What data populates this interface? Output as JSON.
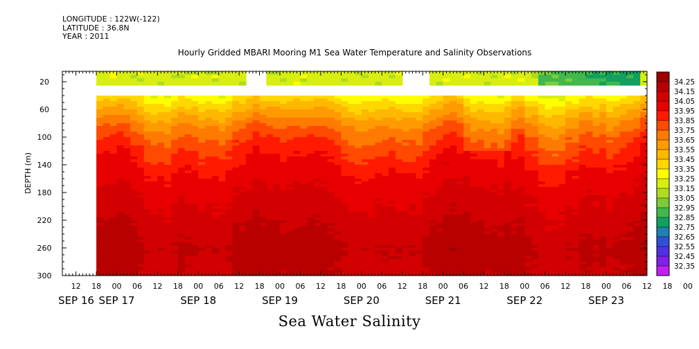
{
  "header": {
    "longitude": "LONGITUDE : 122W(-122)",
    "latitude": "LATITUDE : 36.8N",
    "year": "YEAR : 2011"
  },
  "footer_title": "Sea Water Salinity",
  "chart_data": {
    "type": "heatmap",
    "title": "Hourly Gridded MBARI Mooring M1 Sea Water Temperature and Salinity Observations",
    "xlabel": "",
    "ylabel": "DEPTH (m)",
    "yaxis_inverted": true,
    "ylim": [
      300,
      5
    ],
    "yticks": [
      20,
      60,
      100,
      140,
      180,
      220,
      260,
      300
    ],
    "xlim_hours": [
      "SEP 16 08:00",
      "SEP 23 12:00"
    ],
    "hour_tick_labels": [
      "12",
      "18",
      "00",
      "06",
      "12",
      "18",
      "00",
      "06",
      "12",
      "18",
      "00",
      "06",
      "12",
      "18",
      "00",
      "06",
      "12",
      "18",
      "00",
      "06",
      "12",
      "18",
      "00",
      "06",
      "12",
      "18",
      "00",
      "06",
      "12",
      "18",
      "00"
    ],
    "date_labels": [
      "SEP 16",
      "SEP 17",
      "SEP 18",
      "SEP 19",
      "SEP 20",
      "SEP 21",
      "SEP 22",
      "SEP 23"
    ],
    "colorbar": {
      "levels": [
        "34.25",
        "34.15",
        "34.05",
        "33.95",
        "33.85",
        "33.75",
        "33.65",
        "33.55",
        "33.45",
        "33.35",
        "33.25",
        "33.15",
        "33.05",
        "32.95",
        "32.85",
        "32.75",
        "32.65",
        "32.55",
        "32.45",
        "32.35"
      ],
      "colors": [
        "#9e0000",
        "#b80000",
        "#d20000",
        "#e80000",
        "#ff1a00",
        "#ff4a00",
        "#ff7a00",
        "#ff9a00",
        "#ffb800",
        "#ffd800",
        "#ffff00",
        "#d8ee10",
        "#b0dc20",
        "#7ccc38",
        "#40b84c",
        "#10a060",
        "#2080b0",
        "#3050d8",
        "#5030e0",
        "#8020e8",
        "#c020f0"
      ]
    },
    "data_start": "SEP 16 18:00",
    "gaps_surface": [
      [
        "SEP 18 14:00",
        "SEP 18 20:00"
      ],
      [
        "SEP 20 13:00",
        "SEP 20 19:00"
      ]
    ],
    "gap_depth_range": [
      22,
      40
    ],
    "profile_depths": [
      40,
      60,
      80,
      100,
      120,
      140,
      160,
      180,
      200,
      220,
      240,
      260,
      280,
      300
    ],
    "profile_values": [
      33.35,
      33.52,
      33.68,
      33.8,
      33.88,
      33.95,
      34.0,
      34.05,
      34.08,
      34.12,
      34.15,
      34.18,
      34.16,
      34.14
    ],
    "surface_value": 33.2
  }
}
